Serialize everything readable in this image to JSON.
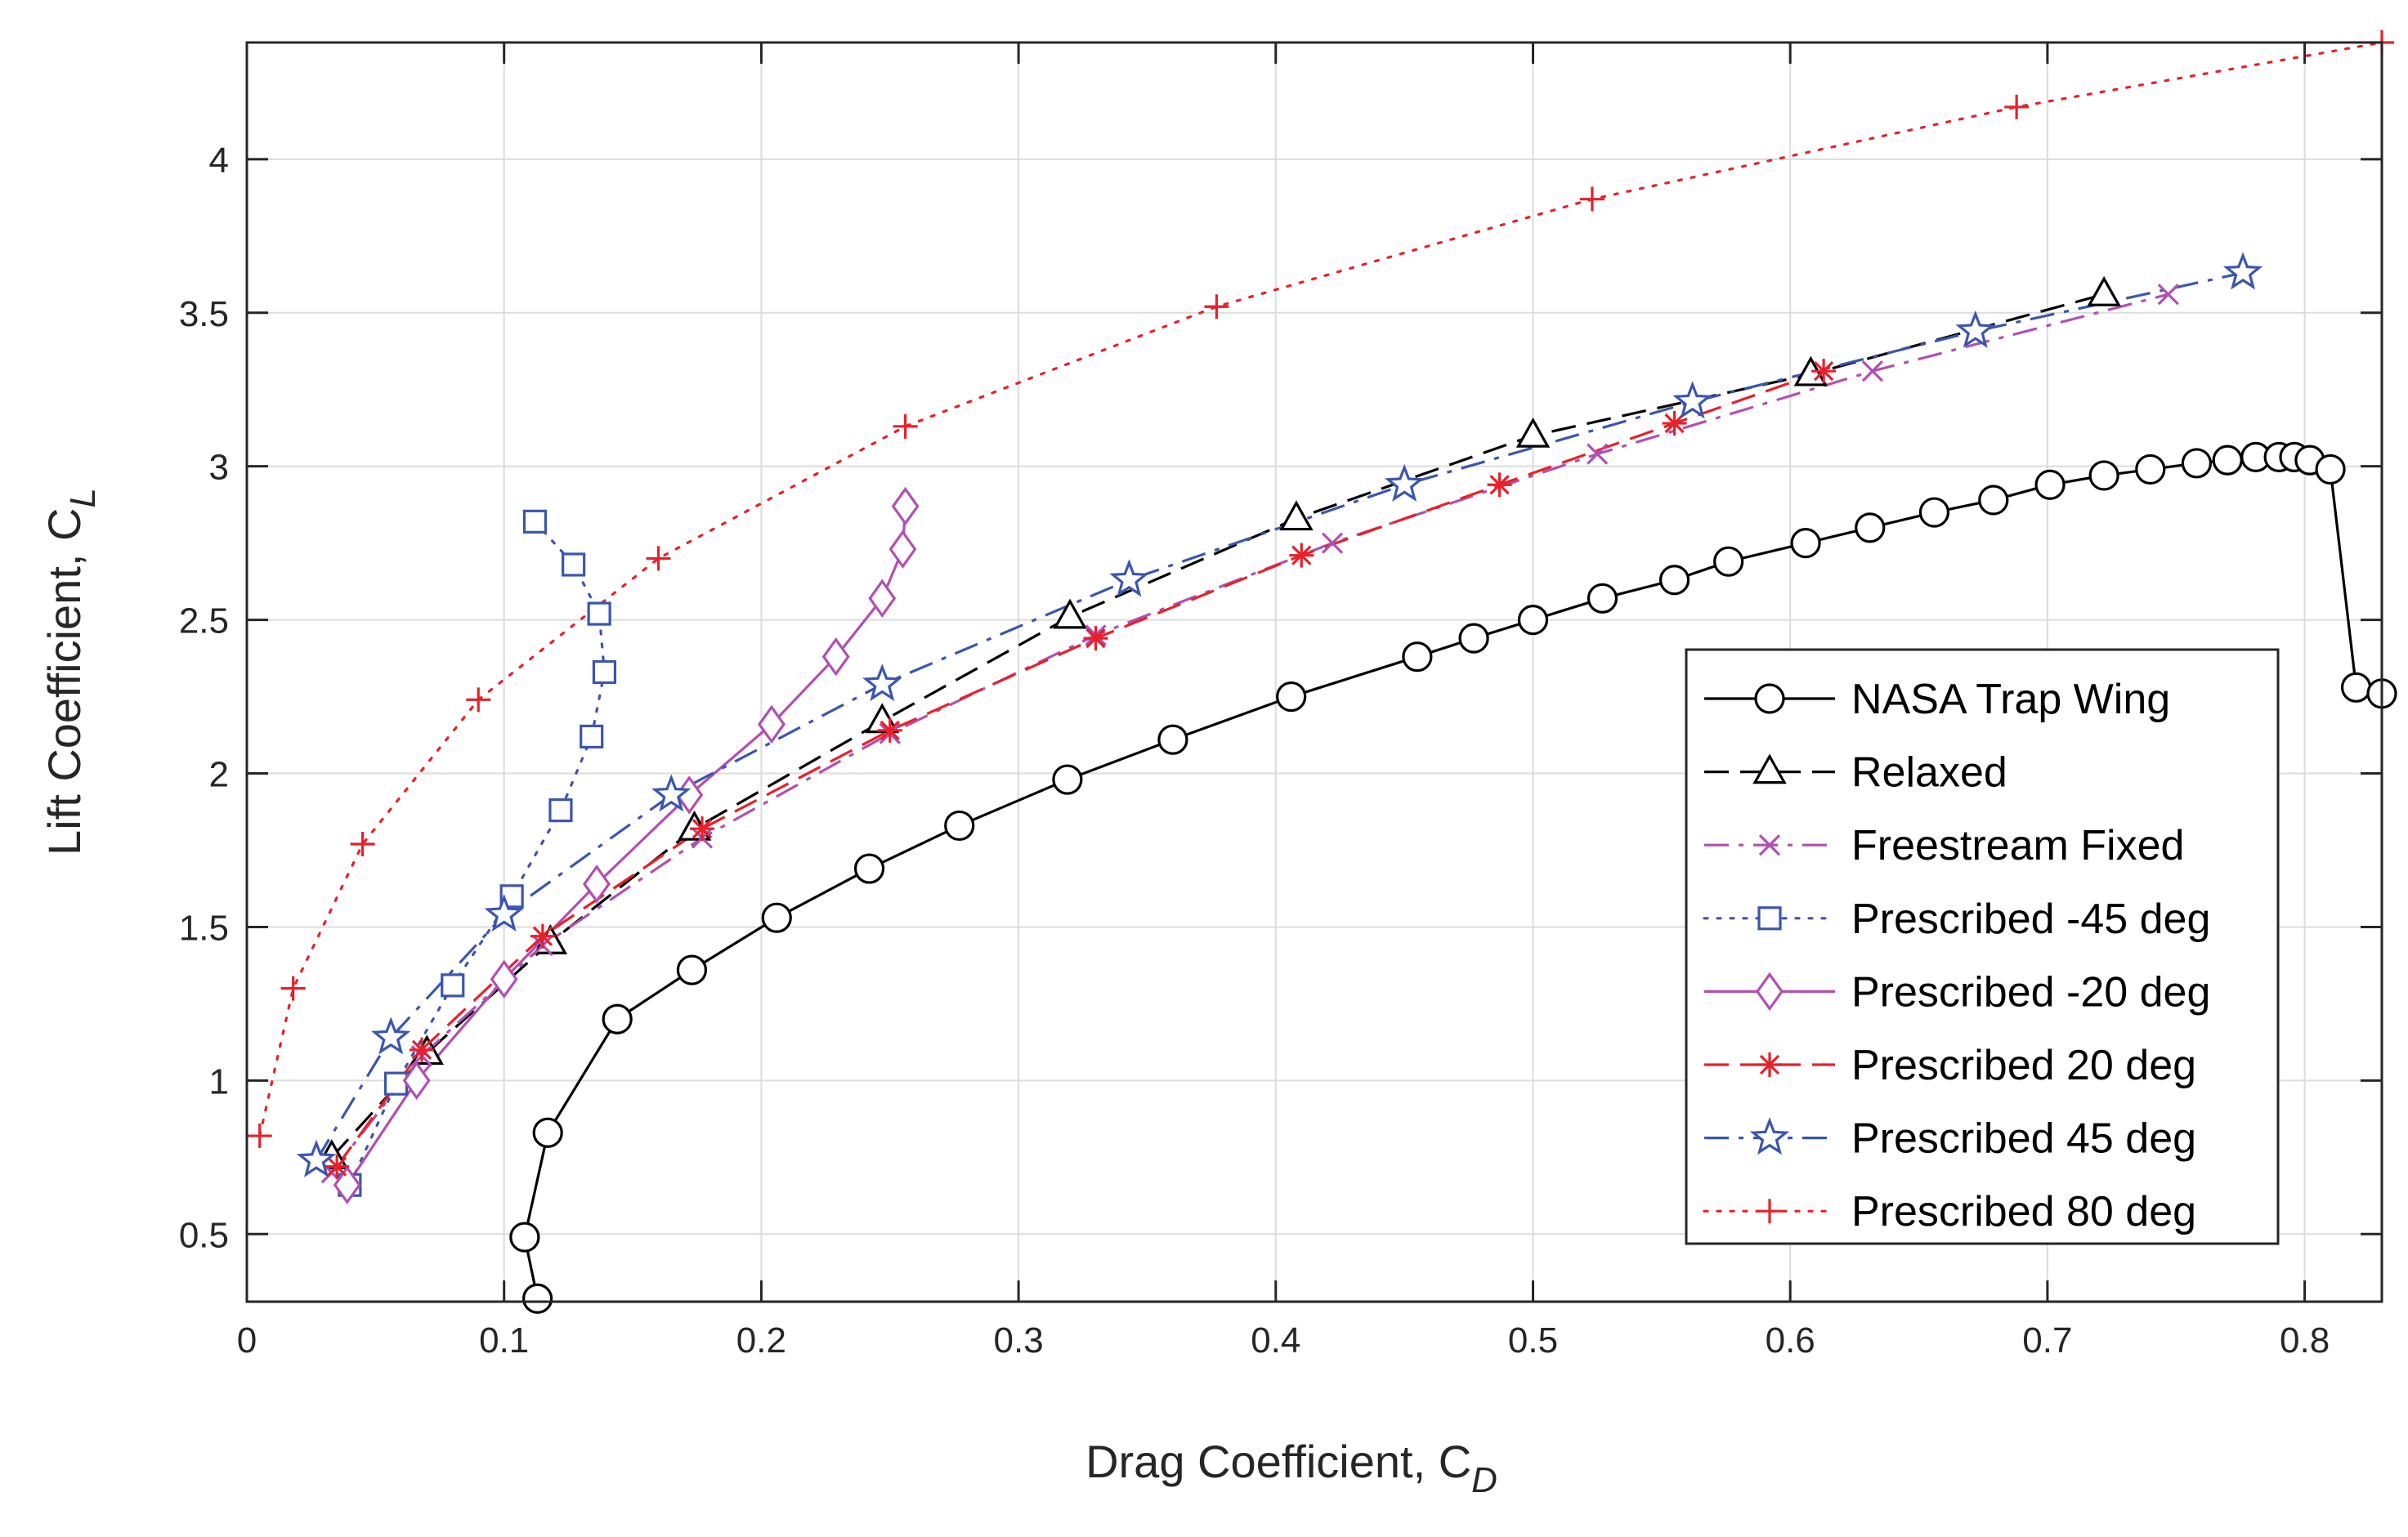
{
  "chart_data": {
    "type": "line",
    "title": "",
    "xlabel": "Drag Coefficient,  C",
    "xlabel_sub": "D",
    "ylabel": "Lift Coefficient,  C",
    "ylabel_sub": "L",
    "xlim": [
      0,
      0.83
    ],
    "ylim": [
      0.28,
      4.38
    ],
    "xticks": [
      0,
      0.1,
      0.2,
      0.3,
      0.4,
      0.5,
      0.6,
      0.7,
      0.8
    ],
    "xtick_labels": [
      "0",
      "0.1",
      "0.2",
      "0.3",
      "0.4",
      "0.5",
      "0.6",
      "0.7",
      "0.8"
    ],
    "yticks": [
      0.5,
      1,
      1.5,
      2,
      2.5,
      3,
      3.5,
      4
    ],
    "ytick_labels": [
      "0.5",
      "1",
      "1.5",
      "2",
      "2.5",
      "3",
      "3.5",
      "4"
    ],
    "grid": true,
    "legend_position": "bottom-right",
    "series": [
      {
        "name": "NASA Trap Wing",
        "color": "#000000",
        "dash": "solid",
        "marker": "circle",
        "x": [
          0.113,
          0.108,
          0.117,
          0.144,
          0.173,
          0.206,
          0.242,
          0.277,
          0.319,
          0.36,
          0.406,
          0.455,
          0.477,
          0.5,
          0.527,
          0.555,
          0.576,
          0.606,
          0.631,
          0.656,
          0.679,
          0.701,
          0.722,
          0.74,
          0.758,
          0.77,
          0.781,
          0.79,
          0.796,
          0.802,
          0.81,
          0.82,
          0.83
        ],
        "y": [
          0.29,
          0.49,
          0.83,
          1.2,
          1.36,
          1.53,
          1.69,
          1.83,
          1.98,
          2.11,
          2.25,
          2.38,
          2.44,
          2.5,
          2.57,
          2.63,
          2.69,
          2.75,
          2.8,
          2.85,
          2.89,
          2.94,
          2.97,
          2.99,
          3.01,
          3.02,
          3.03,
          3.03,
          3.03,
          3.02,
          2.99,
          2.28,
          2.26
        ]
      },
      {
        "name": "Relaxed",
        "color": "#000000",
        "dash": "longdash",
        "marker": "triangle",
        "x": [
          0.033,
          0.07,
          0.118,
          0.174,
          0.247,
          0.32,
          0.408,
          0.5,
          0.608,
          0.722
        ],
        "y": [
          0.75,
          1.09,
          1.45,
          1.82,
          2.17,
          2.51,
          2.83,
          3.1,
          3.3,
          3.56
        ]
      },
      {
        "name": "Freestream Fixed",
        "color": "#b24fb2",
        "dash": "dashdot",
        "marker": "x",
        "x": [
          0.033,
          0.068,
          0.115,
          0.177,
          0.25,
          0.33,
          0.422,
          0.525,
          0.632,
          0.747
        ],
        "y": [
          0.7,
          1.08,
          1.44,
          1.79,
          2.13,
          2.45,
          2.75,
          3.04,
          3.31,
          3.56
        ]
      },
      {
        "name": "Prescribed -45 deg",
        "color": "#3a56b0",
        "dash": "dotted",
        "marker": "square",
        "x": [
          0.04,
          0.058,
          0.08,
          0.103,
          0.122,
          0.134,
          0.139,
          0.137,
          0.127,
          0.112
        ],
        "y": [
          0.66,
          0.99,
          1.31,
          1.6,
          1.88,
          2.12,
          2.33,
          2.52,
          2.68,
          2.82
        ]
      },
      {
        "name": "Prescribed -20 deg",
        "color": "#b24fb2",
        "dash": "solid",
        "marker": "diamond",
        "x": [
          0.039,
          0.066,
          0.1,
          0.136,
          0.172,
          0.204,
          0.229,
          0.247,
          0.255,
          0.256
        ],
        "y": [
          0.66,
          1.0,
          1.33,
          1.64,
          1.93,
          2.16,
          2.38,
          2.57,
          2.73,
          2.87
        ]
      },
      {
        "name": "Prescribed 20 deg",
        "color": "#e8202a",
        "dash": "longdash",
        "marker": "asterisk",
        "x": [
          0.035,
          0.068,
          0.115,
          0.177,
          0.25,
          0.33,
          0.41,
          0.487,
          0.555,
          0.613
        ],
        "y": [
          0.72,
          1.1,
          1.47,
          1.82,
          2.14,
          2.44,
          2.71,
          2.94,
          3.14,
          3.31
        ]
      },
      {
        "name": "Prescribed 45 deg",
        "color": "#3a56b0",
        "dash": "dashdot",
        "marker": "star",
        "x": [
          0.027,
          0.056,
          0.1,
          0.165,
          0.247,
          0.343,
          0.45,
          0.562,
          0.672,
          0.776
        ],
        "y": [
          0.74,
          1.14,
          1.54,
          1.93,
          2.29,
          2.63,
          2.94,
          3.21,
          3.44,
          3.63
        ]
      },
      {
        "name": "Prescribed 80 deg",
        "color": "#e8202a",
        "dash": "dotted",
        "marker": "plus",
        "x": [
          0.005,
          0.018,
          0.045,
          0.09,
          0.16,
          0.256,
          0.377,
          0.523,
          0.688,
          0.83
        ],
        "y": [
          0.82,
          1.3,
          1.77,
          2.24,
          2.7,
          3.13,
          3.52,
          3.87,
          4.17,
          4.38
        ]
      }
    ]
  }
}
